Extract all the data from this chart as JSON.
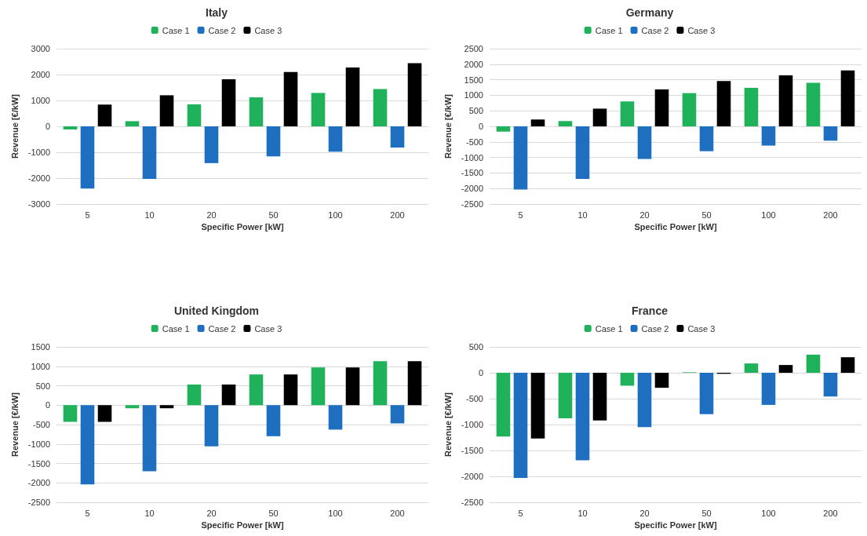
{
  "chart_data": [
    {
      "type": "bar",
      "title": "Italy",
      "xlabel": "Specific Power [kW]",
      "ylabel": "Revenue [€/kW]",
      "categories": [
        "5",
        "10",
        "20",
        "50",
        "100",
        "200"
      ],
      "series": [
        {
          "name": "Case 1",
          "color": "#1fb25a",
          "values": [
            -120,
            200,
            850,
            1120,
            1290,
            1440
          ]
        },
        {
          "name": "Case 2",
          "color": "#1f6fc0",
          "values": [
            -2400,
            -2030,
            -1420,
            -1160,
            -980,
            -820
          ]
        },
        {
          "name": "Case 3",
          "color": "#000000",
          "values": [
            840,
            1200,
            1820,
            2100,
            2270,
            2440
          ]
        }
      ],
      "ylim": [
        -3000,
        3000
      ],
      "yticks": [
        -3000,
        -2000,
        -1000,
        0,
        1000,
        2000,
        3000
      ],
      "grid": "y",
      "legend": "top"
    },
    {
      "type": "bar",
      "title": "Germany",
      "xlabel": "Specific Power [kW]",
      "ylabel": "Revenue [€/kW]",
      "categories": [
        "5",
        "10",
        "20",
        "50",
        "100",
        "200"
      ],
      "series": [
        {
          "name": "Case 1",
          "color": "#1fb25a",
          "values": [
            -170,
            170,
            800,
            1070,
            1240,
            1400
          ]
        },
        {
          "name": "Case 2",
          "color": "#1f6fc0",
          "values": [
            -2030,
            -1690,
            -1050,
            -800,
            -620,
            -460
          ]
        },
        {
          "name": "Case 3",
          "color": "#000000",
          "values": [
            220,
            570,
            1190,
            1460,
            1640,
            1800
          ]
        }
      ],
      "ylim": [
        -2500,
        2500
      ],
      "yticks": [
        -2500,
        -2000,
        -1500,
        -1000,
        -500,
        0,
        500,
        1000,
        1500,
        2000,
        2500
      ],
      "grid": "y",
      "legend": "top"
    },
    {
      "type": "bar",
      "title": "United Kingdom",
      "xlabel": "Specific Power [kW]",
      "ylabel": "Revenue [€/kW]",
      "categories": [
        "5",
        "10",
        "20",
        "50",
        "100",
        "200"
      ],
      "series": [
        {
          "name": "Case 1",
          "color": "#1fb25a",
          "values": [
            -430,
            -80,
            530,
            790,
            970,
            1130
          ]
        },
        {
          "name": "Case 2",
          "color": "#1f6fc0",
          "values": [
            -2040,
            -1700,
            -1060,
            -800,
            -630,
            -470
          ]
        },
        {
          "name": "Case 3",
          "color": "#000000",
          "values": [
            -430,
            -80,
            530,
            790,
            970,
            1130
          ]
        }
      ],
      "ylim": [
        -2500,
        1500
      ],
      "yticks": [
        -2500,
        -2000,
        -1500,
        -1000,
        -500,
        0,
        500,
        1000,
        1500
      ],
      "grid": "y",
      "legend": "top"
    },
    {
      "type": "bar",
      "title": "France",
      "xlabel": "Specific Power [kW]",
      "ylabel": "Revenue [€/kW]",
      "categories": [
        "5",
        "10",
        "20",
        "50",
        "100",
        "200"
      ],
      "series": [
        {
          "name": "Case 1",
          "color": "#1fb25a",
          "values": [
            -1230,
            -880,
            -250,
            10,
            180,
            350
          ]
        },
        {
          "name": "Case 2",
          "color": "#1f6fc0",
          "values": [
            -2030,
            -1690,
            -1050,
            -800,
            -620,
            -460
          ]
        },
        {
          "name": "Case 3",
          "color": "#000000",
          "values": [
            -1270,
            -920,
            -290,
            -20,
            150,
            300
          ]
        }
      ],
      "ylim": [
        -2500,
        500
      ],
      "yticks": [
        -2500,
        -2000,
        -1500,
        -1000,
        -500,
        0,
        500
      ],
      "grid": "y",
      "legend": "top"
    }
  ]
}
